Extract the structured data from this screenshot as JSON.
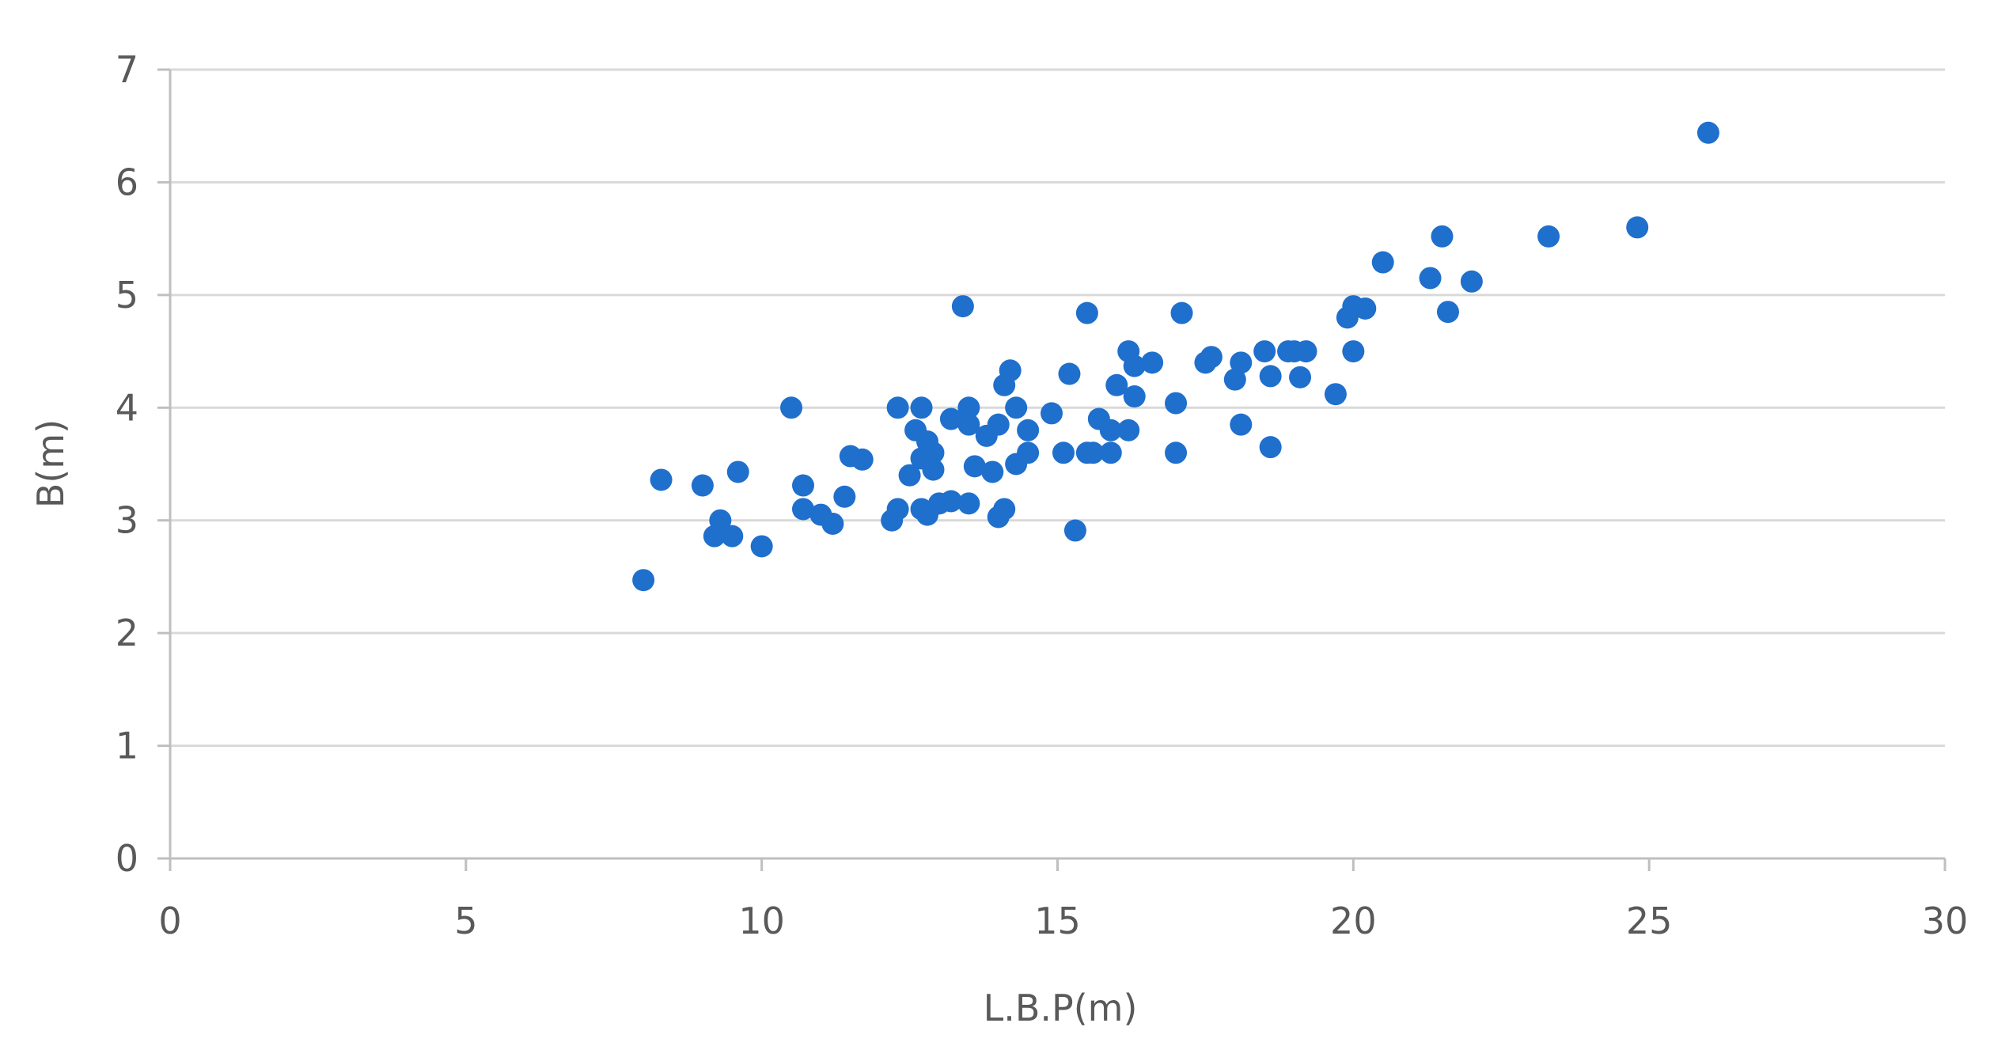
{
  "chart_data": {
    "type": "scatter",
    "title": "",
    "xlabel": "L.B.P(m)",
    "ylabel": "B(m)",
    "xlim": [
      0,
      30
    ],
    "ylim": [
      0,
      7
    ],
    "x_ticks": [
      "0",
      "5",
      "10",
      "15",
      "20",
      "25",
      "30"
    ],
    "y_ticks": [
      "0",
      "1",
      "2",
      "3",
      "4",
      "5",
      "6",
      "7"
    ],
    "grid": "horizontal",
    "legend": "none",
    "marker_color": "#1f6fcd",
    "series": [
      {
        "points": [
          [
            8.0,
            2.47
          ],
          [
            8.3,
            3.36
          ],
          [
            9.0,
            3.31
          ],
          [
            9.2,
            2.86
          ],
          [
            9.3,
            3.0
          ],
          [
            9.5,
            2.86
          ],
          [
            9.6,
            3.43
          ],
          [
            10.0,
            2.77
          ],
          [
            10.5,
            4.0
          ],
          [
            10.7,
            3.31
          ],
          [
            10.7,
            3.1
          ],
          [
            11.0,
            3.05
          ],
          [
            11.2,
            2.97
          ],
          [
            11.4,
            3.21
          ],
          [
            11.5,
            3.57
          ],
          [
            11.7,
            3.54
          ],
          [
            12.2,
            3.0
          ],
          [
            12.3,
            3.1
          ],
          [
            12.3,
            4.0
          ],
          [
            12.5,
            3.4
          ],
          [
            12.6,
            3.8
          ],
          [
            12.7,
            4.0
          ],
          [
            12.7,
            3.55
          ],
          [
            12.7,
            3.1
          ],
          [
            12.8,
            3.7
          ],
          [
            12.8,
            3.05
          ],
          [
            12.9,
            3.6
          ],
          [
            12.9,
            3.45
          ],
          [
            13.0,
            3.15
          ],
          [
            13.2,
            3.9
          ],
          [
            13.2,
            3.17
          ],
          [
            13.4,
            4.9
          ],
          [
            13.5,
            4.0
          ],
          [
            13.5,
            3.85
          ],
          [
            13.5,
            3.15
          ],
          [
            13.6,
            3.48
          ],
          [
            13.8,
            3.75
          ],
          [
            13.9,
            3.43
          ],
          [
            14.0,
            3.85
          ],
          [
            14.0,
            3.03
          ],
          [
            14.1,
            3.1
          ],
          [
            14.1,
            4.2
          ],
          [
            14.2,
            4.33
          ],
          [
            14.3,
            3.5
          ],
          [
            14.3,
            4.0
          ],
          [
            14.5,
            3.8
          ],
          [
            14.5,
            3.6
          ],
          [
            14.9,
            3.95
          ],
          [
            15.1,
            3.6
          ],
          [
            15.2,
            4.3
          ],
          [
            15.3,
            2.91
          ],
          [
            15.5,
            4.84
          ],
          [
            15.5,
            3.6
          ],
          [
            15.6,
            3.6
          ],
          [
            15.7,
            3.9
          ],
          [
            15.9,
            3.6
          ],
          [
            15.9,
            3.8
          ],
          [
            16.0,
            4.2
          ],
          [
            16.2,
            3.8
          ],
          [
            16.2,
            4.5
          ],
          [
            16.3,
            4.37
          ],
          [
            16.3,
            4.1
          ],
          [
            16.6,
            4.4
          ],
          [
            17.0,
            3.6
          ],
          [
            17.0,
            4.04
          ],
          [
            17.1,
            4.84
          ],
          [
            17.5,
            4.4
          ],
          [
            17.6,
            4.45
          ],
          [
            18.0,
            4.25
          ],
          [
            18.1,
            3.85
          ],
          [
            18.1,
            4.4
          ],
          [
            18.5,
            4.5
          ],
          [
            18.6,
            4.28
          ],
          [
            18.6,
            3.65
          ],
          [
            18.9,
            4.5
          ],
          [
            19.0,
            4.5
          ],
          [
            19.1,
            4.27
          ],
          [
            19.2,
            4.5
          ],
          [
            19.7,
            4.12
          ],
          [
            19.9,
            4.8
          ],
          [
            20.0,
            4.9
          ],
          [
            20.0,
            4.5
          ],
          [
            20.2,
            4.88
          ],
          [
            20.5,
            5.29
          ],
          [
            21.3,
            5.15
          ],
          [
            21.5,
            5.52
          ],
          [
            21.6,
            4.85
          ],
          [
            22.0,
            5.12
          ],
          [
            23.3,
            5.52
          ],
          [
            24.8,
            5.6
          ],
          [
            26.0,
            6.44
          ]
        ]
      }
    ]
  }
}
